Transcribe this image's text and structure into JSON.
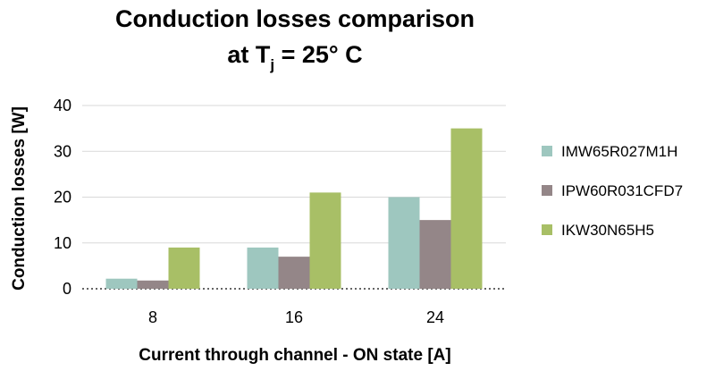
{
  "chart_data": {
    "type": "bar",
    "title_line1": "Conduction losses comparison",
    "title_line2_prefix": "at T",
    "title_line2_subscript": "j",
    "title_line2_suffix": " = 25° C",
    "xlabel": "Current through channel - ON state [A]",
    "ylabel": "Conduction losses [W]",
    "categories": [
      "8",
      "16",
      "24"
    ],
    "ylim": [
      0,
      40
    ],
    "yticks": [
      "0",
      "10",
      "20",
      "30",
      "40"
    ],
    "grid": true,
    "legend_position": "right",
    "series": [
      {
        "name": "IMW65R027M1H",
        "color": "#9ec7bf",
        "values": [
          2.2,
          9,
          20
        ]
      },
      {
        "name": "IPW60R031CFD7",
        "color": "#948688",
        "values": [
          1.8,
          7,
          15
        ]
      },
      {
        "name": "IKW30N65H5",
        "color": "#a8bf66",
        "values": [
          9,
          21,
          35
        ]
      }
    ]
  }
}
